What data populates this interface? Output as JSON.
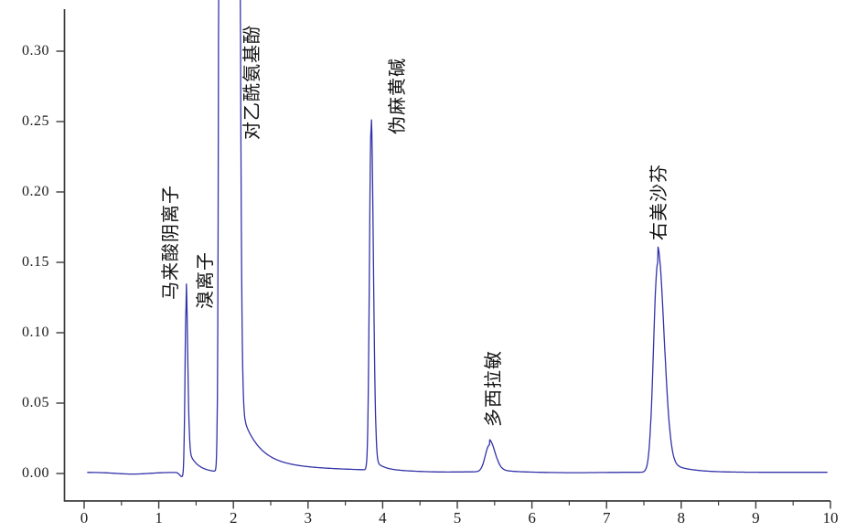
{
  "figure_title": "",
  "chart_data": {
    "type": "line",
    "title": "",
    "xlabel": "",
    "ylabel": "",
    "legend": null,
    "grid": false,
    "trace_color": "#3232a8",
    "axis_color": "#3a3a3a",
    "x_axis": {
      "range": [
        0,
        10
      ],
      "major_ticks": [
        0,
        1,
        2,
        3,
        4,
        5,
        6,
        7,
        8,
        9,
        10
      ],
      "minor_step": 0.5
    },
    "y_axis": {
      "visible_range": [
        -0.0195,
        0.3364
      ],
      "major_tick_labels": [
        "0.00",
        "0.05",
        "0.10",
        "0.15",
        "0.20",
        "0.25",
        "0.30"
      ]
    },
    "baseline": 0.0008,
    "trace_t_range": [
      0.04,
      9.965
    ],
    "sample_step": 0.005,
    "peaks": [
      {
        "label": "马来酸阴离子",
        "rt": 1.365,
        "height": 0.118,
        "off_scale": false,
        "model": {
          "h": 0.118,
          "sl": 0.014,
          "sr": 0.022,
          "ta": 0.02,
          "tt": 0.12
        },
        "label_t": 1.085,
        "label_v": 0.1234
      },
      {
        "label": "溴离子",
        "rt": 1.85,
        "height": null,
        "off_scale": true,
        "model": {
          "h": 4.0,
          "sl": 0.022,
          "sr": 0.05
        },
        "label_t": 1.556,
        "label_v": 0.1169
      },
      {
        "label": "对乙酰氨基酚",
        "rt": 1.99,
        "height": null,
        "off_scale": true,
        "model": {
          "h": 6.0,
          "sl": 0.05,
          "sr": 0.042,
          "ta": 0.06,
          "tt": 0.22,
          "t2a": 0.008,
          "t2t": 1.2
        },
        "label_t": 2.182,
        "label_v": 0.237
      },
      {
        "label": "伪麻黄碱",
        "rt": 3.845,
        "height": 0.2425,
        "off_scale": false,
        "model": {
          "h": 0.2425,
          "sl": 0.022,
          "sr": 0.03,
          "ta": 0.01,
          "tt": 0.12
        },
        "label_t": 4.13,
        "label_v": 0.2409
      },
      {
        "label": "多西拉敏",
        "rt": 5.43,
        "height": 0.019,
        "off_scale": false,
        "model": {
          "h": 0.019,
          "sl": 0.055,
          "sr": 0.075,
          "ta": 0.004,
          "tt": 0.15
        },
        "label_t": 5.417,
        "label_v": 0.0331
      },
      {
        "label": "右美沙芬",
        "rt": 7.685,
        "height": 0.1485,
        "off_scale": false,
        "model": {
          "h": 0.1485,
          "sl": 0.055,
          "sr": 0.085,
          "ta": 0.012,
          "tt": 0.25
        },
        "label_t": 7.635,
        "label_v": 0.1656
      }
    ],
    "baseline_dips": [
      {
        "c": 0.65,
        "w": 0.22,
        "d": -0.0012
      },
      {
        "c": 1.31,
        "w": 0.03,
        "d": -0.003
      },
      {
        "c": 4.75,
        "w": 0.3,
        "d": -0.0005
      },
      {
        "c": 6.5,
        "w": 0.4,
        "d": -0.0004
      }
    ]
  }
}
